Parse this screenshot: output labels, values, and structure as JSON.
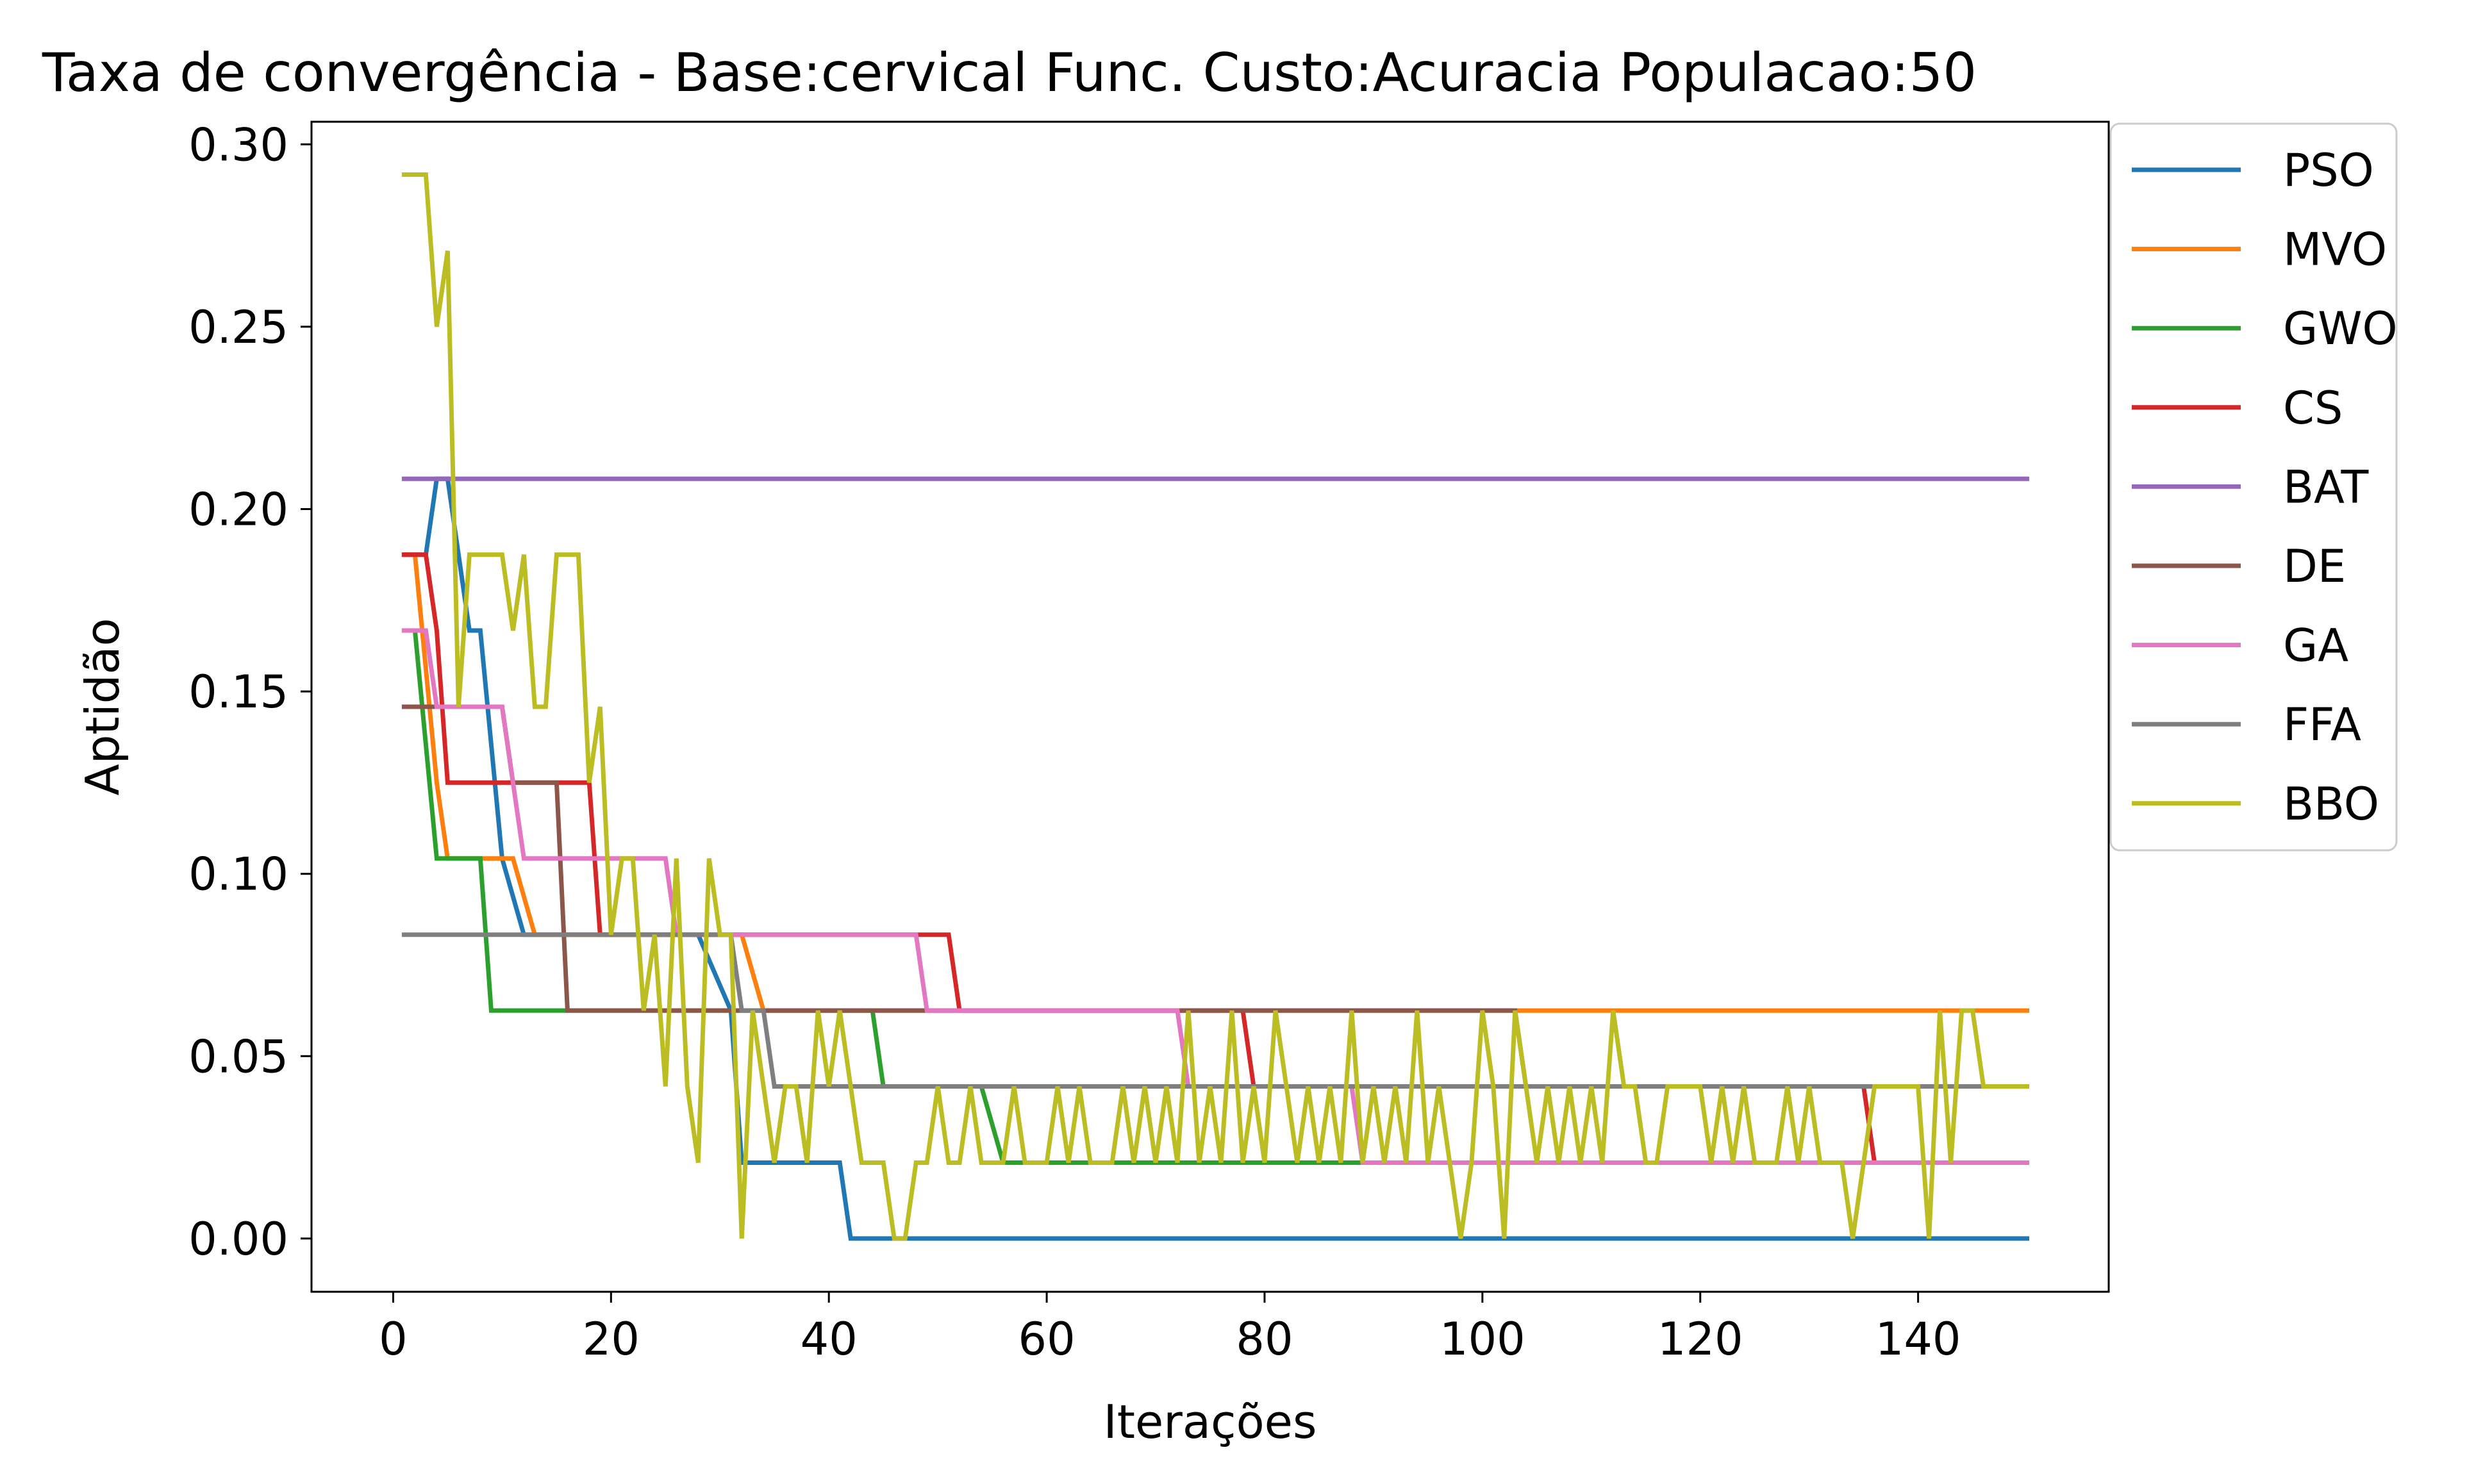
{
  "chart_data": {
    "type": "line",
    "title": "Taxa de convergência - Base:cervical Func. Custo:Acuracia Populacao:50",
    "xlabel": "Iterações",
    "ylabel": "Aptidão",
    "xlim": [
      -7.5,
      157.5
    ],
    "ylim": [
      -0.0146,
      0.3062
    ],
    "xticks": [
      0,
      20,
      40,
      60,
      80,
      100,
      120,
      140
    ],
    "yticks": [
      0.0,
      0.05,
      0.1,
      0.15,
      0.2,
      0.25,
      0.3
    ],
    "ytick_labels": [
      "0.00",
      "0.05",
      "0.10",
      "0.15",
      "0.20",
      "0.25",
      "0.30"
    ],
    "grid": false,
    "legend_position": "outside-top-right",
    "series": [
      {
        "name": "PSO",
        "color": "#1f77b4",
        "points": [
          [
            1,
            0.1875
          ],
          [
            3,
            0.1875
          ],
          [
            4,
            0.2083
          ],
          [
            5,
            0.2083
          ],
          [
            7,
            0.1667
          ],
          [
            8,
            0.1667
          ],
          [
            10,
            0.1042
          ],
          [
            12,
            0.0833
          ],
          [
            26,
            0.0833
          ],
          [
            28,
            0.0833
          ],
          [
            31,
            0.0625
          ],
          [
            32,
            0.0208
          ],
          [
            41,
            0.0208
          ],
          [
            42,
            0
          ],
          [
            150,
            0
          ]
        ]
      },
      {
        "name": "MVO",
        "color": "#ff7f0e",
        "points": [
          [
            1,
            0.1875
          ],
          [
            2,
            0.1875
          ],
          [
            4,
            0.125
          ],
          [
            5,
            0.1042
          ],
          [
            9,
            0.1042
          ],
          [
            11,
            0.1042
          ],
          [
            13,
            0.0833
          ],
          [
            32,
            0.0833
          ],
          [
            34,
            0.0625
          ],
          [
            150,
            0.0625
          ]
        ]
      },
      {
        "name": "GWO",
        "color": "#2ca02c",
        "points": [
          [
            1,
            0.1667
          ],
          [
            2,
            0.1667
          ],
          [
            4,
            0.1042
          ],
          [
            8,
            0.1042
          ],
          [
            9,
            0.0625
          ],
          [
            44,
            0.0625
          ],
          [
            45,
            0.0417
          ],
          [
            54,
            0.0417
          ],
          [
            56,
            0.0208
          ],
          [
            88,
            0.0208
          ],
          [
            90,
            0.0208
          ],
          [
            150,
            0.0208
          ]
        ]
      },
      {
        "name": "CS",
        "color": "#d62728",
        "points": [
          [
            1,
            0.1875
          ],
          [
            3,
            0.1875
          ],
          [
            4,
            0.1667
          ],
          [
            5,
            0.125
          ],
          [
            18,
            0.125
          ],
          [
            19,
            0.0833
          ],
          [
            51,
            0.0833
          ],
          [
            52,
            0.0625
          ],
          [
            78,
            0.0625
          ],
          [
            79,
            0.0417
          ],
          [
            135,
            0.0417
          ],
          [
            136,
            0.0208
          ],
          [
            150,
            0.0208
          ]
        ]
      },
      {
        "name": "BAT",
        "color": "#9467bd",
        "points": [
          [
            1,
            0.2083
          ],
          [
            150,
            0.2083
          ]
        ]
      },
      {
        "name": "DE",
        "color": "#8c564b",
        "points": [
          [
            1,
            0.1458
          ],
          [
            10,
            0.1458
          ],
          [
            11,
            0.125
          ],
          [
            15,
            0.125
          ],
          [
            16,
            0.0625
          ],
          [
            103,
            0.0625
          ],
          [
            104,
            0.0417
          ],
          [
            150,
            0.0417
          ]
        ]
      },
      {
        "name": "GA",
        "color": "#e377c2",
        "points": [
          [
            1,
            0.1667
          ],
          [
            3,
            0.1667
          ],
          [
            4,
            0.1458
          ],
          [
            10,
            0.1458
          ],
          [
            12,
            0.1042
          ],
          [
            25,
            0.1042
          ],
          [
            26,
            0.0833
          ],
          [
            48,
            0.0833
          ],
          [
            49,
            0.0625
          ],
          [
            72,
            0.0625
          ],
          [
            73,
            0.0417
          ],
          [
            88,
            0.0417
          ],
          [
            89,
            0.0208
          ],
          [
            150,
            0.0208
          ]
        ]
      },
      {
        "name": "FFA",
        "color": "#7f7f7f",
        "points": [
          [
            1,
            0.0833
          ],
          [
            31,
            0.0833
          ],
          [
            32,
            0.0625
          ],
          [
            34,
            0.0625
          ],
          [
            35,
            0.0417
          ],
          [
            150,
            0.0417
          ]
        ]
      },
      {
        "name": "BBO",
        "color": "#bcbd22",
        "points": [
          [
            1,
            0.2917
          ],
          [
            3,
            0.2917
          ],
          [
            4,
            0.25
          ],
          [
            5,
            0.2708
          ],
          [
            6,
            0.1458
          ],
          [
            7,
            0.1875
          ],
          [
            10,
            0.1875
          ],
          [
            11,
            0.1667
          ],
          [
            12,
            0.1875
          ],
          [
            13,
            0.1458
          ],
          [
            14,
            0.1458
          ],
          [
            15,
            0.1875
          ],
          [
            17,
            0.1875
          ],
          [
            18,
            0.125
          ],
          [
            19,
            0.1458
          ],
          [
            20,
            0.0833
          ],
          [
            21,
            0.1042
          ],
          [
            22,
            0.1042
          ],
          [
            23,
            0.0625
          ],
          [
            24,
            0.0833
          ],
          [
            25,
            0.0417
          ],
          [
            26,
            0.1042
          ],
          [
            27,
            0.0417
          ],
          [
            28,
            0.0208
          ],
          [
            29,
            0.1042
          ],
          [
            30,
            0.0833
          ],
          [
            31,
            0.0833
          ],
          [
            32,
            0
          ],
          [
            33,
            0.0625
          ],
          [
            34,
            0.0417
          ],
          [
            35,
            0.0208
          ],
          [
            36,
            0.0417
          ],
          [
            37,
            0.0417
          ],
          [
            38,
            0.0208
          ],
          [
            39,
            0.0625
          ],
          [
            40,
            0.0417
          ],
          [
            41,
            0.0625
          ],
          [
            42,
            0.0417
          ],
          [
            43,
            0.0208
          ],
          [
            45,
            0.0208
          ],
          [
            46,
            0
          ],
          [
            47,
            0
          ],
          [
            48,
            0.0208
          ],
          [
            49,
            0.0208
          ],
          [
            50,
            0.0417
          ],
          [
            51,
            0.0208
          ],
          [
            52,
            0.0208
          ],
          [
            53,
            0.0417
          ],
          [
            54,
            0.0208
          ],
          [
            56,
            0.0208
          ],
          [
            57,
            0.0417
          ],
          [
            58,
            0.0208
          ],
          [
            60,
            0.0208
          ],
          [
            61,
            0.0417
          ],
          [
            62,
            0.0208
          ],
          [
            63,
            0.0417
          ],
          [
            64,
            0.0208
          ],
          [
            66,
            0.0208
          ],
          [
            67,
            0.0417
          ],
          [
            68,
            0.0208
          ],
          [
            69,
            0.0417
          ],
          [
            70,
            0.0208
          ],
          [
            71,
            0.0417
          ],
          [
            72,
            0.0208
          ],
          [
            73,
            0.0625
          ],
          [
            74,
            0.0208
          ],
          [
            75,
            0.0417
          ],
          [
            76,
            0.0208
          ],
          [
            77,
            0.0625
          ],
          [
            78,
            0.0208
          ],
          [
            79,
            0.0417
          ],
          [
            80,
            0.0208
          ],
          [
            81,
            0.0625
          ],
          [
            82,
            0.0417
          ],
          [
            83,
            0.0208
          ],
          [
            84,
            0.0417
          ],
          [
            85,
            0.0208
          ],
          [
            86,
            0.0417
          ],
          [
            87,
            0.0208
          ],
          [
            88,
            0.0625
          ],
          [
            89,
            0.0208
          ],
          [
            90,
            0.0417
          ],
          [
            91,
            0.0208
          ],
          [
            92,
            0.0417
          ],
          [
            93,
            0.0208
          ],
          [
            94,
            0.0625
          ],
          [
            95,
            0.0208
          ],
          [
            96,
            0.0417
          ],
          [
            97,
            0.0208
          ],
          [
            98,
            0
          ],
          [
            99,
            0.0208
          ],
          [
            100,
            0.0625
          ],
          [
            101,
            0.0417
          ],
          [
            102,
            0
          ],
          [
            103,
            0.0625
          ],
          [
            104,
            0.0417
          ],
          [
            105,
            0.0208
          ],
          [
            106,
            0.0417
          ],
          [
            107,
            0.0208
          ],
          [
            108,
            0.0417
          ],
          [
            109,
            0.0208
          ],
          [
            110,
            0.0417
          ],
          [
            111,
            0.0208
          ],
          [
            112,
            0.0625
          ],
          [
            113,
            0.0417
          ],
          [
            114,
            0.0417
          ],
          [
            115,
            0.0208
          ],
          [
            116,
            0.0208
          ],
          [
            117,
            0.0417
          ],
          [
            120,
            0.0417
          ],
          [
            121,
            0.0208
          ],
          [
            122,
            0.0417
          ],
          [
            123,
            0.0208
          ],
          [
            124,
            0.0417
          ],
          [
            125,
            0.0208
          ],
          [
            127,
            0.0208
          ],
          [
            128,
            0.0417
          ],
          [
            129,
            0.0208
          ],
          [
            130,
            0.0417
          ],
          [
            131,
            0.0208
          ],
          [
            133,
            0.0208
          ],
          [
            134,
            0
          ],
          [
            135,
            0.0208
          ],
          [
            136,
            0.0417
          ],
          [
            140,
            0.0417
          ],
          [
            141,
            0
          ],
          [
            142,
            0.0625
          ],
          [
            143,
            0.0208
          ],
          [
            144,
            0.0625
          ],
          [
            145,
            0.0625
          ],
          [
            146,
            0.0417
          ],
          [
            150,
            0.0417
          ]
        ]
      }
    ]
  }
}
